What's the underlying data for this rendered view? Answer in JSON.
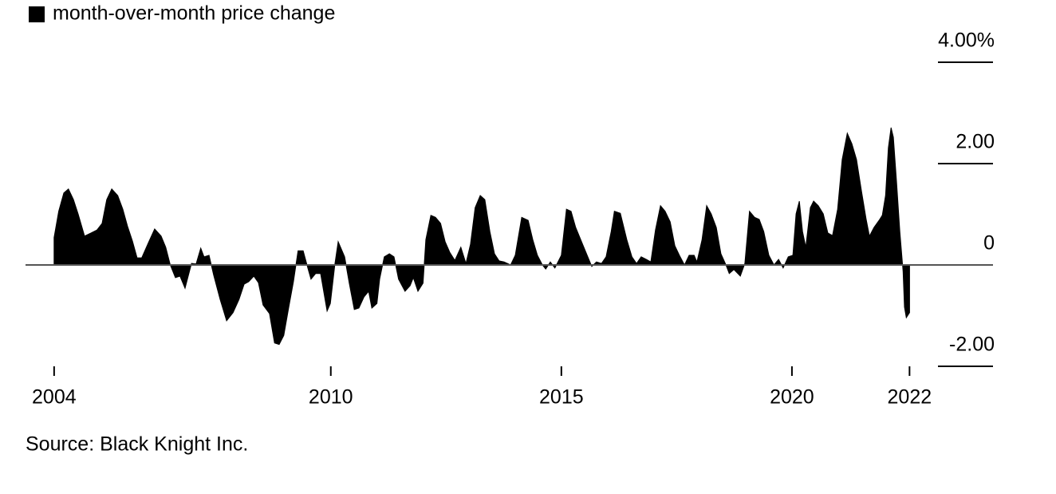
{
  "chart_data": {
    "type": "area",
    "legend_label": "month-over-month price change",
    "source": "Source: Black Knight Inc.",
    "color": "#000000",
    "x": [
      2004.0,
      2004.1,
      2004.21,
      2004.31,
      2004.42,
      2004.52,
      2004.66,
      2004.8,
      2004.93,
      2005.04,
      2005.14,
      2005.25,
      2005.38,
      2005.49,
      2005.59,
      2005.7,
      2005.8,
      2005.9,
      2006.04,
      2006.18,
      2006.32,
      2006.42,
      2006.52,
      2006.63,
      2006.73,
      2006.84,
      2006.98,
      2007.08,
      2007.18,
      2007.25,
      2007.36,
      2007.46,
      2007.6,
      2007.74,
      2007.88,
      2008.01,
      2008.12,
      2008.22,
      2008.33,
      2008.43,
      2008.53,
      2008.67,
      2008.78,
      2008.88,
      2008.98,
      2009.09,
      2009.19,
      2009.29,
      2009.4,
      2009.5,
      2009.57,
      2009.67,
      2009.78,
      2009.92,
      2009.99,
      2010.09,
      2010.16,
      2010.3,
      2010.4,
      2010.51,
      2010.61,
      2010.72,
      2010.82,
      2010.89,
      2011.0,
      2011.06,
      2011.16,
      2011.27,
      2011.37,
      2011.47,
      2011.61,
      2011.72,
      2011.79,
      2011.89,
      2012.0,
      2012.06,
      2012.17,
      2012.27,
      2012.38,
      2012.48,
      2012.58,
      2012.69,
      2012.82,
      2012.93,
      2013.03,
      2013.13,
      2013.24,
      2013.34,
      2013.45,
      2013.55,
      2013.65,
      2013.76,
      2013.9,
      2014.0,
      2014.14,
      2014.28,
      2014.38,
      2014.48,
      2014.59,
      2014.66,
      2014.76,
      2014.86,
      2015.0,
      2015.11,
      2015.21,
      2015.31,
      2015.45,
      2015.56,
      2015.66,
      2015.76,
      2015.87,
      2015.97,
      2016.08,
      2016.15,
      2016.28,
      2016.42,
      2016.53,
      2016.63,
      2016.73,
      2016.84,
      2016.94,
      2017.04,
      2017.15,
      2017.25,
      2017.36,
      2017.46,
      2017.56,
      2017.67,
      2017.77,
      2017.88,
      2017.94,
      2018.05,
      2018.15,
      2018.25,
      2018.36,
      2018.46,
      2018.57,
      2018.64,
      2018.74,
      2018.88,
      2018.98,
      2019.08,
      2019.19,
      2019.29,
      2019.39,
      2019.5,
      2019.61,
      2019.71,
      2019.81,
      2019.92,
      2020.02,
      2020.09,
      2020.16,
      2020.23,
      2020.3,
      2020.4,
      2020.47,
      2020.57,
      2020.68,
      2020.78,
      2020.88,
      2020.99,
      2021.09,
      2021.2,
      2021.3,
      2021.4,
      2021.51,
      2021.61,
      2021.68,
      2021.78,
      2021.89,
      2021.96,
      2022.03,
      2022.09,
      2022.15,
      2022.2,
      2022.27,
      2022.34,
      2022.41,
      2022.44,
      2022.48,
      2022.55
    ],
    "values": [
      0.54,
      1.06,
      1.42,
      1.5,
      1.29,
      1.01,
      0.57,
      0.63,
      0.69,
      0.82,
      1.29,
      1.5,
      1.37,
      1.1,
      0.77,
      0.47,
      0.14,
      0.14,
      0.43,
      0.71,
      0.57,
      0.35,
      0.0,
      -0.25,
      -0.22,
      -0.46,
      0.03,
      0.02,
      0.33,
      0.16,
      0.19,
      -0.2,
      -0.68,
      -1.1,
      -0.94,
      -0.68,
      -0.38,
      -0.33,
      -0.22,
      -0.35,
      -0.79,
      -0.96,
      -1.54,
      -1.57,
      -1.39,
      -0.83,
      -0.33,
      0.28,
      0.28,
      -0.05,
      -0.28,
      -0.17,
      -0.17,
      -0.91,
      -0.76,
      0.03,
      0.46,
      0.16,
      -0.36,
      -0.88,
      -0.85,
      -0.63,
      -0.52,
      -0.85,
      -0.76,
      -0.28,
      0.16,
      0.22,
      0.16,
      -0.28,
      -0.52,
      -0.41,
      -0.25,
      -0.52,
      -0.36,
      0.5,
      0.98,
      0.94,
      0.82,
      0.46,
      0.25,
      0.09,
      0.35,
      0.03,
      0.41,
      1.13,
      1.37,
      1.29,
      0.66,
      0.22,
      0.08,
      0.06,
      0.0,
      0.19,
      0.94,
      0.88,
      0.5,
      0.19,
      0.0,
      -0.08,
      0.06,
      -0.06,
      0.19,
      1.1,
      1.06,
      0.74,
      0.43,
      0.19,
      -0.03,
      0.06,
      0.03,
      0.16,
      0.66,
      1.06,
      1.02,
      0.5,
      0.16,
      0.03,
      0.16,
      0.11,
      0.06,
      0.69,
      1.17,
      1.06,
      0.85,
      0.38,
      0.19,
      0.0,
      0.19,
      0.19,
      0.06,
      0.5,
      1.17,
      1.01,
      0.74,
      0.22,
      0.0,
      -0.17,
      -0.09,
      -0.22,
      0.03,
      1.06,
      0.94,
      0.9,
      0.66,
      0.19,
      0.0,
      0.11,
      -0.06,
      0.16,
      0.19,
      1.01,
      1.26,
      0.66,
      0.35,
      1.13,
      1.26,
      1.17,
      1.01,
      0.63,
      0.58,
      1.1,
      2.08,
      2.6,
      2.39,
      2.08,
      1.45,
      0.9,
      0.57,
      0.74,
      0.88,
      0.98,
      1.37,
      2.31,
      2.71,
      2.52,
      1.61,
      0.66,
      -0.13,
      -0.83,
      -1.04,
      -0.94
    ],
    "xlim": [
      2003.38,
      2024.36
    ],
    "xticks": [
      2004,
      2010,
      2015,
      2020,
      {
        "value": 2022.55,
        "label": "2022"
      }
    ],
    "ylim": [
      -2,
      4
    ],
    "yticks": [
      {
        "value": 4,
        "label": "4.00%"
      },
      {
        "value": 2,
        "label": "2.00"
      },
      0,
      {
        "value": -2,
        "label": "-2.00"
      }
    ]
  }
}
